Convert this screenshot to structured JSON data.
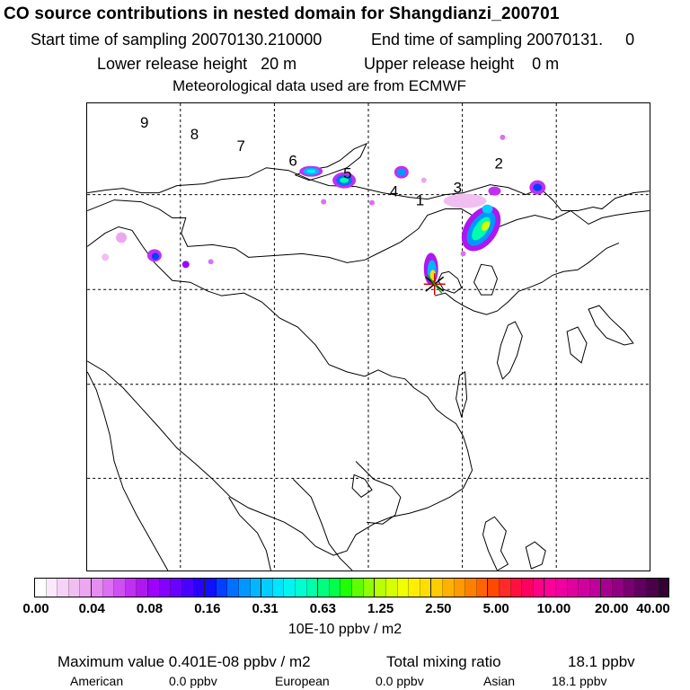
{
  "header": {
    "title": "CO  source contributions in nested domain for Shangdianzi_200701",
    "start_label": "Start time of sampling 20070130.210000",
    "end_label": "End time of sampling 20070131.     0",
    "lower_release": "Lower release height   20 m",
    "upper_release": "Upper release height    0 m",
    "met_data": "Meteorological data used are from ECMWF"
  },
  "map": {
    "region_labels": [
      "9",
      "8",
      "7",
      "6",
      "5",
      "4",
      "1",
      "3",
      "2"
    ],
    "receptor_marker": "receptor-star",
    "colors": {
      "coast": "#000000",
      "grid": "#000000"
    }
  },
  "colorbar": {
    "tick_labels": [
      "0.00",
      "0.04",
      "0.08",
      "0.16",
      "0.31",
      "0.63",
      "1.25",
      "2.50",
      "5.00",
      "10.00",
      "20.00",
      "40.00"
    ],
    "units": "10E-10 ppbv / m2",
    "colors": [
      "#ffffff",
      "#fbe8fb",
      "#f6d3f6",
      "#f1bef1",
      "#eda6f0",
      "#e68cf2",
      "#dc6ff2",
      "#cf4ff2",
      "#c030f3",
      "#b016f0",
      "#a000ff",
      "#8400ff",
      "#6a00ff",
      "#4a00ff",
      "#2c00ff",
      "#1010ff",
      "#0040ff",
      "#0070ff",
      "#0098ff",
      "#00b6ff",
      "#00cfff",
      "#00e6ff",
      "#00f5f0",
      "#00ffd0",
      "#00ffaa",
      "#00ff80",
      "#00ff4a",
      "#20ff00",
      "#60ff00",
      "#90ff00",
      "#b8ff00",
      "#d8ff00",
      "#f2ff00",
      "#ffee00",
      "#ffdd00",
      "#ffcc00",
      "#ffb000",
      "#ff9a00",
      "#ff8000",
      "#ff6400",
      "#ff4800",
      "#ff2a2a",
      "#ff1040",
      "#ff0060",
      "#ff0088",
      "#ff0099",
      "#f000a0",
      "#e000a0",
      "#d000a0",
      "#c0009a",
      "#a8008e",
      "#900080",
      "#780070",
      "#600060",
      "#4c004c",
      "#360036"
    ]
  },
  "footer": {
    "max_label": "Maximum value  0.401E-08 ppbv / m2",
    "total_label": "Total mixing ratio",
    "total_value": "18.1 ppbv",
    "american_label": "American",
    "american_value": "0.0 ppbv",
    "european_label": "European",
    "european_value": "0.0 ppbv",
    "asian_label": "Asian",
    "asian_value": "18.1 ppbv"
  }
}
